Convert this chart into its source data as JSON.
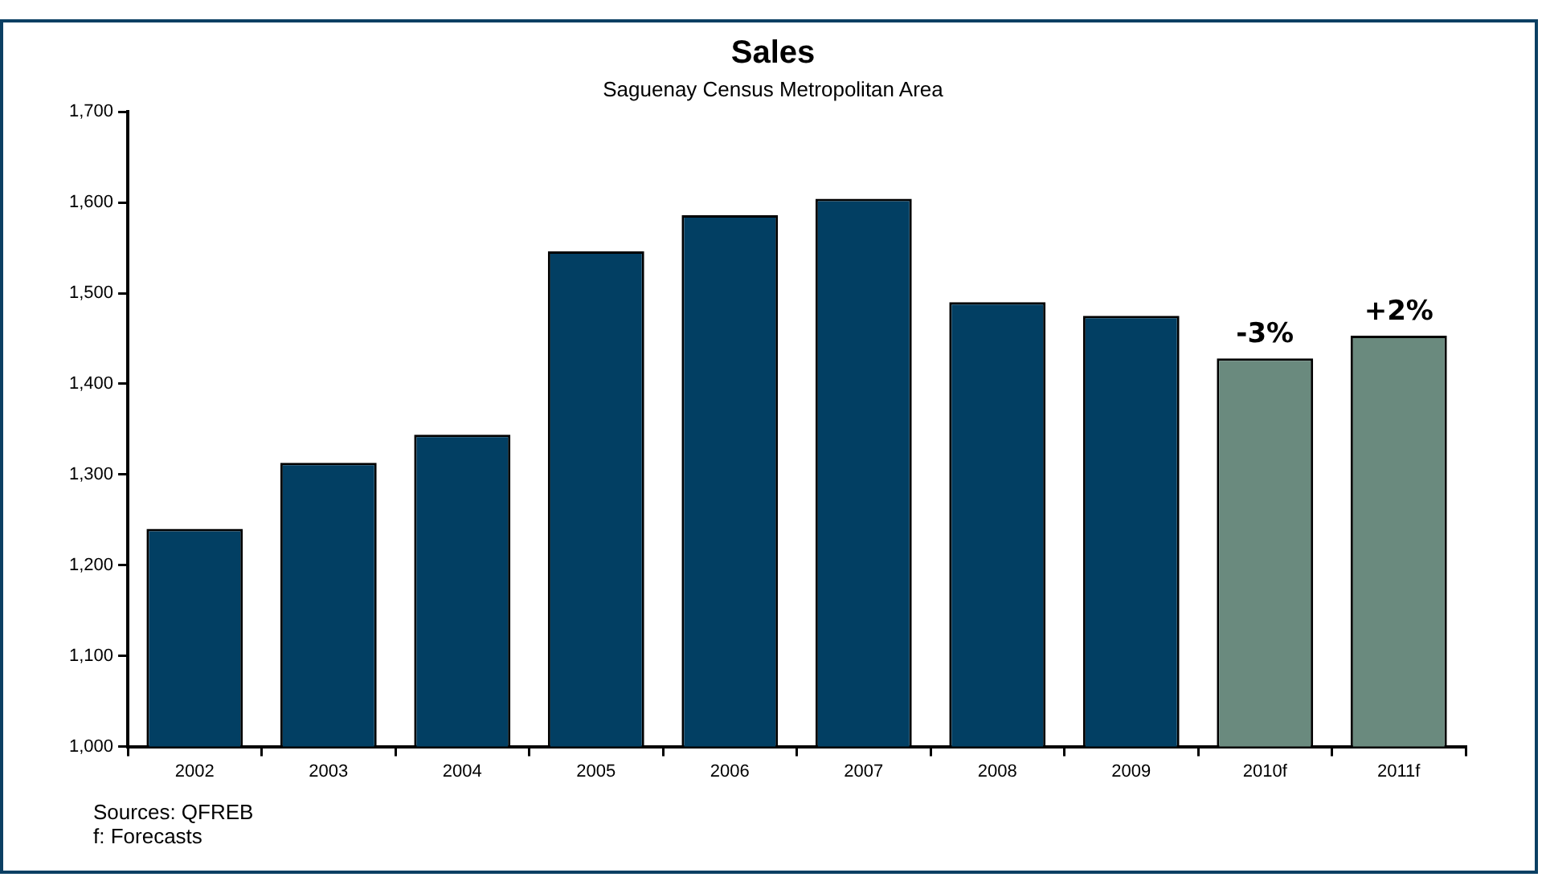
{
  "chart_data": {
    "type": "bar",
    "title": "Sales",
    "subtitle": "Saguenay Census Metropolitan Area",
    "categories": [
      "2002",
      "2003",
      "2004",
      "2005",
      "2006",
      "2007",
      "2008",
      "2009",
      "2010f",
      "2011f"
    ],
    "values": [
      1240,
      1313,
      1344,
      1546,
      1586,
      1604,
      1490,
      1475,
      1428,
      1453
    ],
    "colors": [
      "#023f63",
      "#023f63",
      "#023f63",
      "#023f63",
      "#023f63",
      "#023f63",
      "#023f63",
      "#023f63",
      "#6a8a7e",
      "#6a8a7e"
    ],
    "ylim": [
      1000,
      1700
    ],
    "yticks": [
      {
        "value": 1000,
        "label": "1,000"
      },
      {
        "value": 1100,
        "label": "1,100"
      },
      {
        "value": 1200,
        "label": "1,200"
      },
      {
        "value": 1300,
        "label": "1,300"
      },
      {
        "value": 1400,
        "label": "1,400"
      },
      {
        "value": 1500,
        "label": "1,500"
      },
      {
        "value": 1600,
        "label": "1,600"
      },
      {
        "value": 1700,
        "label": "1,700"
      }
    ],
    "grid": false,
    "legend": false,
    "annotations": [
      {
        "text": "-3%",
        "x": "2010f",
        "y": 1428
      },
      {
        "text": "+2%",
        "x": "2011f",
        "y": 1453
      },
      "Sources: QFREB",
      "f: Forecasts"
    ]
  }
}
